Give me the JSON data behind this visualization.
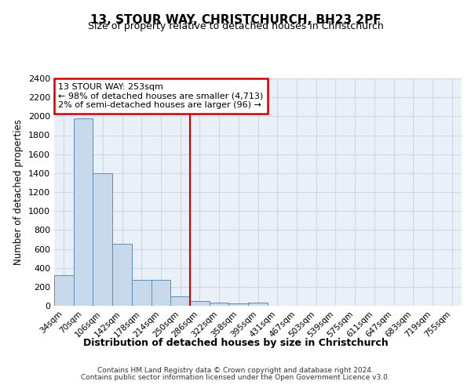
{
  "title": "13, STOUR WAY, CHRISTCHURCH, BH23 2PF",
  "subtitle": "Size of property relative to detached houses in Christchurch",
  "xlabel": "Distribution of detached houses by size in Christchurch",
  "ylabel": "Number of detached properties",
  "footer_line1": "Contains HM Land Registry data © Crown copyright and database right 2024.",
  "footer_line2": "Contains public sector information licensed under the Open Government Licence v3.0.",
  "annotation_line1": "13 STOUR WAY: 253sqm",
  "annotation_line2": "← 98% of detached houses are smaller (4,713)",
  "annotation_line3": "2% of semi-detached houses are larger (96) →",
  "bar_color": "#c9d9ec",
  "bar_edge_color": "#5b8db8",
  "vline_x_idx": 6,
  "vline_color": "#cc0000",
  "categories": [
    "34sqm",
    "70sqm",
    "106sqm",
    "142sqm",
    "178sqm",
    "214sqm",
    "250sqm",
    "286sqm",
    "322sqm",
    "358sqm",
    "395sqm",
    "431sqm",
    "467sqm",
    "503sqm",
    "539sqm",
    "575sqm",
    "611sqm",
    "647sqm",
    "683sqm",
    "719sqm",
    "755sqm"
  ],
  "values": [
    320,
    1980,
    1400,
    650,
    275,
    275,
    100,
    48,
    35,
    22,
    30,
    0,
    0,
    0,
    0,
    0,
    0,
    0,
    0,
    0,
    0
  ],
  "ylim": [
    0,
    2400
  ],
  "yticks": [
    0,
    200,
    400,
    600,
    800,
    1000,
    1200,
    1400,
    1600,
    1800,
    2000,
    2200,
    2400
  ],
  "grid_color": "#d0d8e8",
  "bg_color": "#eaf0f8",
  "title_fontsize": 11,
  "subtitle_fontsize": 9
}
